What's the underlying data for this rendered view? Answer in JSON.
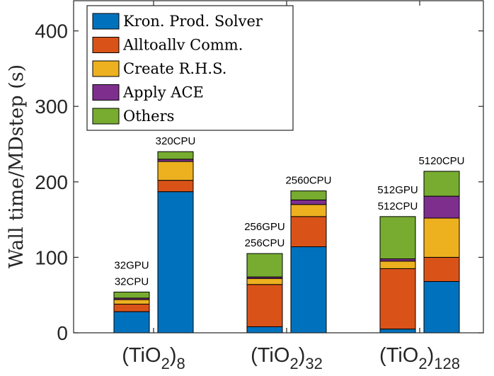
{
  "chart_data": {
    "type": "bar",
    "stacked": true,
    "ylabel": "Wall time/MDstep (s)",
    "ylim": [
      0,
      440
    ],
    "yticks": [
      0,
      100,
      200,
      300,
      400
    ],
    "groups": [
      {
        "base": "(TiO",
        "sub1": "2",
        "close": ")",
        "sub2": "8",
        "bars": [
          {
            "label_line1": "32GPU",
            "label_line2": "32CPU",
            "values": [
              28,
              10,
              6,
              2,
              8
            ]
          },
          {
            "label_line1": "320CPU",
            "label_line2": "",
            "values": [
              187,
              15,
              25,
              3,
              10
            ]
          }
        ]
      },
      {
        "base": "(TiO",
        "sub1": "2",
        "close": ")",
        "sub2": "32",
        "bars": [
          {
            "label_line1": "256GPU",
            "label_line2": "256CPU",
            "values": [
              8,
              56,
              8,
              2,
              31
            ]
          },
          {
            "label_line1": "2560CPU",
            "label_line2": "",
            "values": [
              114,
              40,
              16,
              6,
              12
            ]
          }
        ]
      },
      {
        "base": "(TiO",
        "sub1": "2",
        "close": ")",
        "sub2": "128",
        "bars": [
          {
            "label_line1": "512GPU",
            "label_line2": "512CPU",
            "values": [
              5,
              80,
              10,
              3,
              56
            ]
          },
          {
            "label_line1": "5120CPU",
            "label_line2": "",
            "values": [
              68,
              32,
              52,
              29,
              33
            ]
          }
        ]
      }
    ],
    "series": [
      {
        "name": "Kron. Prod. Solver",
        "color": "#0072bd"
      },
      {
        "name": "Alltoallv Comm.",
        "color": "#d95319"
      },
      {
        "name": "Create R.H.S.",
        "color": "#edb120"
      },
      {
        "name": "Apply ACE",
        "color": "#7e2f8e"
      },
      {
        "name": "Others",
        "color": "#77ac30"
      }
    ],
    "legend_position": "top-left"
  }
}
